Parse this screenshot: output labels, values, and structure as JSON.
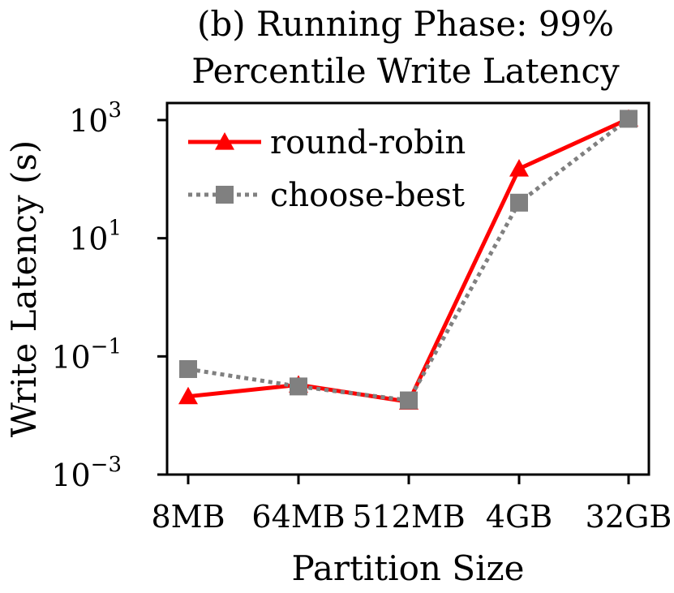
{
  "chart_data": {
    "type": "line",
    "title_lines": [
      "(b) Running Phase: 99%",
      "Percentile Write Latency"
    ],
    "xlabel": "Partition Size",
    "ylabel": "Write Latency (s)",
    "categories": [
      "8MB",
      "64MB",
      "512MB",
      "4GB",
      "32GB"
    ],
    "y_scale": "log",
    "ylim": [
      0.001,
      1500
    ],
    "y_ticks": [
      {
        "base": "10",
        "exp": "3",
        "value": 1000
      },
      {
        "base": "10",
        "exp": "1",
        "value": 10
      },
      {
        "base": "10",
        "exp": "−1",
        "value": 0.1
      },
      {
        "base": "10",
        "exp": "−3",
        "value": 0.001
      }
    ],
    "grid": false,
    "legend_position": "top-left",
    "series": [
      {
        "name": "round-robin",
        "color": "#ff0000",
        "line_style": "solid",
        "marker": "triangle",
        "values": [
          0.021,
          0.033,
          0.017,
          150,
          1050
        ]
      },
      {
        "name": "choose-best",
        "color": "#808080",
        "line_style": "dotted",
        "marker": "square",
        "values": [
          0.061,
          0.031,
          0.018,
          40,
          1050
        ]
      }
    ]
  }
}
